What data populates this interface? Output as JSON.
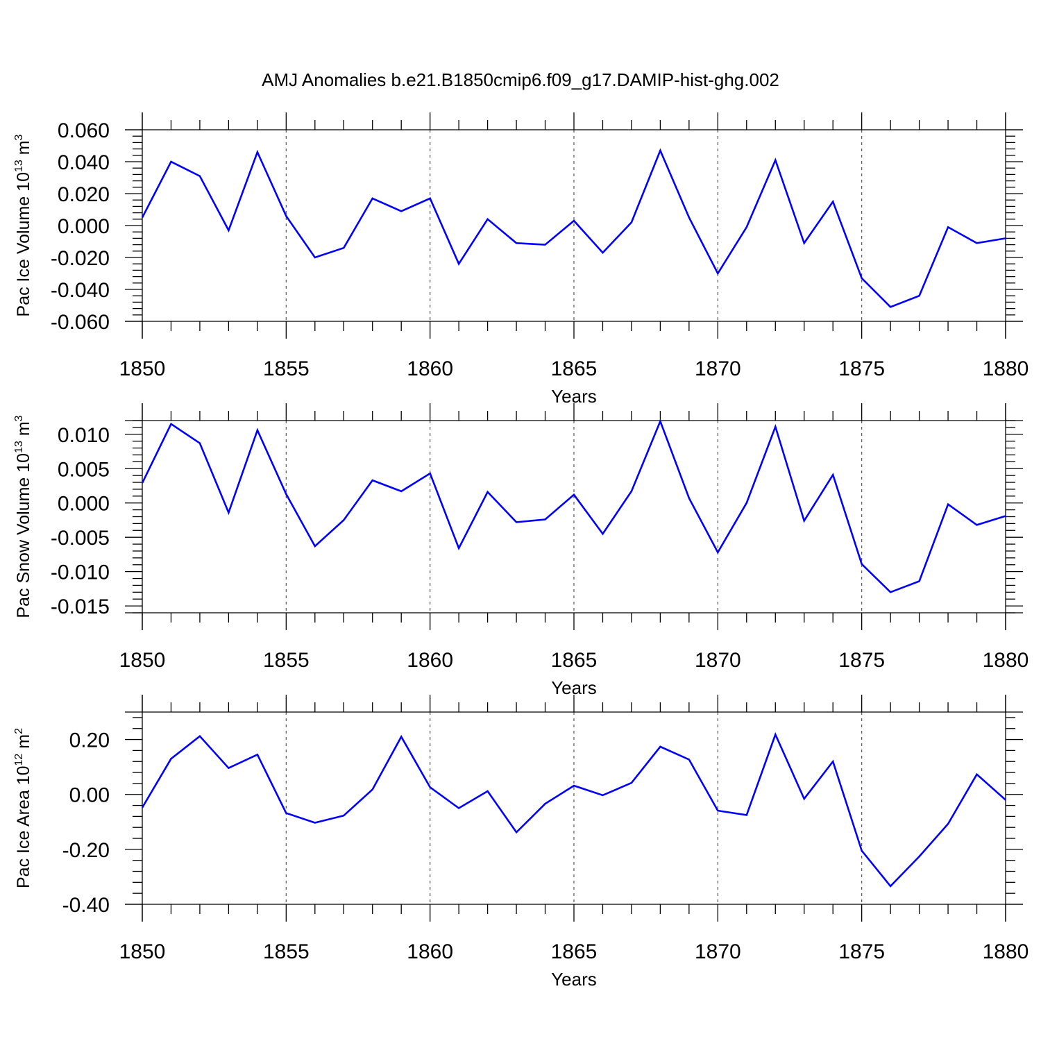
{
  "figure": {
    "title": "AMJ Anomalies b.e21.B1850cmip6.f09_g17.DAMIP-hist-ghg.002",
    "line_color": "#0000ff"
  },
  "chart_data": [
    {
      "type": "line",
      "ylabel": {
        "main": "Pac Ice Volume 10",
        "sup": "13",
        "unit": " m",
        "unit_sup": "3"
      },
      "xlabel": "Years",
      "xlim": [
        1850,
        1880
      ],
      "ylim": [
        -0.06,
        0.06
      ],
      "yticks": [
        0.06,
        0.04,
        0.02,
        0.0,
        -0.02,
        -0.04,
        -0.06
      ],
      "ytick_labels": [
        "0.060",
        "0.040",
        "0.020",
        "0.000",
        "-0.020",
        "-0.040",
        "-0.060"
      ],
      "xticks": [
        1850,
        1855,
        1860,
        1865,
        1870,
        1875,
        1880
      ],
      "xtick_labels": [
        "1850",
        "1855",
        "1860",
        "1865",
        "1870",
        "1875",
        "1880"
      ],
      "grid": "dashed vertical at major x ticks",
      "series": [
        {
          "name": "Pac Ice Volume",
          "x": [
            1850,
            1851,
            1852,
            1853,
            1854,
            1855,
            1856,
            1857,
            1858,
            1859,
            1860,
            1861,
            1862,
            1863,
            1864,
            1865,
            1866,
            1867,
            1868,
            1869,
            1870,
            1871,
            1872,
            1873,
            1874,
            1875,
            1876,
            1877,
            1878,
            1879,
            1880
          ],
          "values": [
            0.005,
            0.04,
            0.031,
            -0.003,
            0.046,
            0.006,
            -0.02,
            -0.014,
            0.017,
            0.009,
            0.017,
            -0.024,
            0.004,
            -0.011,
            -0.012,
            0.003,
            -0.017,
            0.002,
            0.047,
            0.005,
            -0.03,
            -0.001,
            0.041,
            -0.011,
            0.015,
            -0.033,
            -0.051,
            -0.044,
            -0.001,
            -0.011,
            -0.008
          ]
        }
      ]
    },
    {
      "type": "line",
      "ylabel": {
        "main": "Pac Snow Volume 10",
        "sup": "13",
        "unit": " m",
        "unit_sup": "3"
      },
      "xlabel": "Years",
      "xlim": [
        1850,
        1880
      ],
      "ylim": [
        -0.016,
        0.012
      ],
      "yticks": [
        0.01,
        0.005,
        0.0,
        -0.005,
        -0.01,
        -0.015
      ],
      "ytick_labels": [
        "0.010",
        "0.005",
        "0.000",
        "-0.005",
        "-0.010",
        "-0.015"
      ],
      "xticks": [
        1850,
        1855,
        1860,
        1865,
        1870,
        1875,
        1880
      ],
      "xtick_labels": [
        "1850",
        "1855",
        "1860",
        "1865",
        "1870",
        "1875",
        "1880"
      ],
      "grid": "dashed vertical at major x ticks",
      "series": [
        {
          "name": "Pac Snow Volume",
          "x": [
            1850,
            1851,
            1852,
            1853,
            1854,
            1855,
            1856,
            1857,
            1858,
            1859,
            1860,
            1861,
            1862,
            1863,
            1864,
            1865,
            1866,
            1867,
            1868,
            1869,
            1870,
            1871,
            1872,
            1873,
            1874,
            1875,
            1876,
            1877,
            1878,
            1879,
            1880
          ],
          "values": [
            0.0029,
            0.0115,
            0.0087,
            -0.0014,
            0.0106,
            0.0013,
            -0.0063,
            -0.0025,
            0.0033,
            0.0017,
            0.0043,
            -0.0066,
            0.0016,
            -0.0028,
            -0.0024,
            0.0012,
            -0.0045,
            0.0017,
            0.0119,
            0.0007,
            -0.0072,
            0.0,
            0.0111,
            -0.0026,
            0.0041,
            -0.0089,
            -0.013,
            -0.0114,
            -0.0002,
            -0.0032,
            -0.0019
          ]
        }
      ]
    },
    {
      "type": "line",
      "ylabel": {
        "main": "Pac Ice Area 10",
        "sup": "12",
        "unit": " m",
        "unit_sup": "2"
      },
      "xlabel": "Years",
      "xlim": [
        1850,
        1880
      ],
      "ylim": [
        -0.4,
        0.3
      ],
      "yticks": [
        0.2,
        0.0,
        -0.2,
        -0.4
      ],
      "ytick_labels": [
        "0.20",
        "0.00",
        "-0.20",
        "-0.40"
      ],
      "xticks": [
        1850,
        1855,
        1860,
        1865,
        1870,
        1875,
        1880
      ],
      "xtick_labels": [
        "1850",
        "1855",
        "1860",
        "1865",
        "1870",
        "1875",
        "1880"
      ],
      "grid": "dashed vertical at major x ticks",
      "series": [
        {
          "name": "Pac Ice Area",
          "x": [
            1850,
            1851,
            1852,
            1853,
            1854,
            1855,
            1856,
            1857,
            1858,
            1859,
            1860,
            1861,
            1862,
            1863,
            1864,
            1865,
            1866,
            1867,
            1868,
            1869,
            1870,
            1871,
            1872,
            1873,
            1874,
            1875,
            1876,
            1877,
            1878,
            1879,
            1880
          ],
          "values": [
            -0.048,
            0.13,
            0.212,
            0.096,
            0.145,
            -0.068,
            -0.103,
            -0.077,
            0.018,
            0.21,
            0.026,
            -0.05,
            0.012,
            -0.138,
            -0.034,
            0.032,
            -0.003,
            0.042,
            0.174,
            0.127,
            -0.059,
            -0.075,
            0.218,
            -0.016,
            0.12,
            -0.205,
            -0.334,
            -0.226,
            -0.107,
            0.073,
            -0.02
          ]
        }
      ]
    }
  ]
}
